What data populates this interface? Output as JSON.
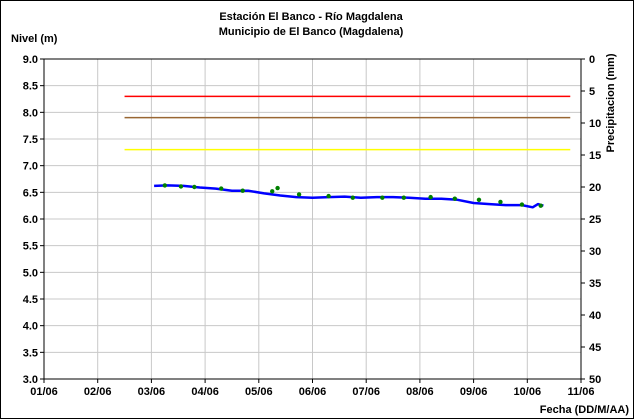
{
  "chart_data": {
    "type": "line",
    "title": "Estación El Banco - Río Magdalena",
    "subtitle": "Municipio de El Banco (Magdalena)",
    "ylabel": "Nivel (m)",
    "y2label": "Precipitacion (mm)",
    "xlabel": "Fecha (DD/M/AA)",
    "ylim": [
      3.0,
      9.0
    ],
    "y2lim": [
      0,
      50
    ],
    "y2_inverted": true,
    "yticks": [
      "3.0",
      "3.5",
      "4.0",
      "4.5",
      "5.0",
      "5.5",
      "6.0",
      "6.5",
      "7.0",
      "7.5",
      "8.0",
      "8.5",
      "9.0"
    ],
    "y2ticks": [
      "0",
      "5",
      "10",
      "15",
      "20",
      "25",
      "30",
      "35",
      "40",
      "45",
      "50"
    ],
    "xticks": [
      "01/06",
      "02/06",
      "03/06",
      "04/06",
      "05/06",
      "06/06",
      "07/06",
      "08/06",
      "09/06",
      "10/06",
      "11/06"
    ],
    "xlim": [
      0,
      10
    ],
    "grid": true,
    "thresholds": [
      {
        "y": 8.3,
        "color": "#ff0000"
      },
      {
        "y": 7.9,
        "color": "#996633"
      },
      {
        "y": 7.3,
        "color": "#ffff00"
      }
    ],
    "threshold_xrange": [
      1.5,
      9.8
    ],
    "series": [
      {
        "color": "#0000ff",
        "style": "line",
        "x": [
          2.05,
          2.3,
          2.6,
          2.9,
          3.2,
          3.5,
          3.8,
          4.1,
          4.4,
          4.7,
          5.0,
          5.3,
          5.6,
          5.9,
          6.2,
          6.5,
          6.8,
          7.1,
          7.4,
          7.7,
          8.0,
          8.3,
          8.6,
          8.9,
          9.1,
          9.2,
          9.3
        ],
        "y": [
          6.62,
          6.63,
          6.62,
          6.59,
          6.57,
          6.53,
          6.53,
          6.48,
          6.44,
          6.41,
          6.4,
          6.41,
          6.42,
          6.4,
          6.41,
          6.41,
          6.4,
          6.38,
          6.38,
          6.36,
          6.3,
          6.28,
          6.26,
          6.26,
          6.22,
          6.28,
          6.25
        ]
      },
      {
        "color": "#008000",
        "style": "points",
        "x": [
          2.25,
          2.55,
          2.8,
          3.3,
          3.7,
          4.25,
          4.35,
          4.75,
          5.3,
          5.75,
          6.3,
          6.7,
          7.2,
          7.65,
          8.1,
          8.5,
          8.9,
          9.25
        ],
        "y": [
          6.63,
          6.61,
          6.6,
          6.57,
          6.53,
          6.52,
          6.58,
          6.46,
          6.43,
          6.4,
          6.4,
          6.4,
          6.41,
          6.38,
          6.36,
          6.32,
          6.27,
          6.25
        ]
      }
    ]
  }
}
